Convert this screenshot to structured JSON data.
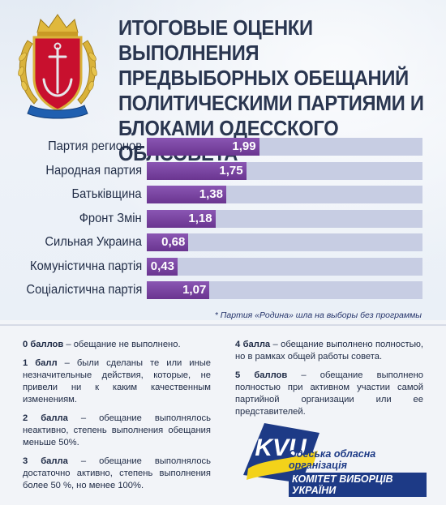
{
  "title": {
    "lines": [
      "ИТОГОВЫЕ ОЦЕНКИ ВЫПОЛНЕНИЯ",
      "ПРЕДВЫБОРНЫХ ОБЕЩАНИЙ",
      "ПОЛИТИЧЕСКИМИ ПАРТИЯМИ И",
      "БЛОКАМИ ОДЕССКОГО ОБЛСОВЕТА"
    ]
  },
  "colors": {
    "bar": "#7a45a2",
    "track": "#c7cde3",
    "title": "#2a3650",
    "org_blue": "#1d3a86",
    "org_yellow": "#f3d21a"
  },
  "icons": {
    "emblem": "odesa-oblast-coat-of-arms-icon",
    "logo": "kvu-logo-icon"
  },
  "chart_data": {
    "type": "bar",
    "orientation": "horizontal",
    "categories": [
      "Партия регионов",
      "Народная партия",
      "Батьківщина",
      "Фронт Змін",
      "Сильная Украина",
      "Комуністична партія",
      "Соціалістична партія"
    ],
    "values": [
      1.99,
      1.75,
      1.38,
      1.18,
      0.68,
      0.43,
      1.07
    ],
    "value_labels": [
      "1,99",
      "1,75",
      "1,38",
      "1,18",
      "0,68",
      "0,43",
      "1,07"
    ],
    "xlim": [
      0,
      5
    ],
    "grid": false,
    "legend": "none"
  },
  "footnote": "* Партия «Родина» шла на выборы без программы",
  "legend": {
    "left": [
      {
        "term": "0 баллов",
        "text": " – обещание не выполнено."
      },
      {
        "term": "1 балл",
        "text": " – были сделаны те или иные незначительные действия, которые, не привели ни к каким качественным изменениям."
      },
      {
        "term": "2 балла",
        "text": " – обещание выполнялось неактивно, степень выполнения обещания меньше 50%."
      },
      {
        "term": "3 балла",
        "text": " – обещание выполнялось достаточно активно, степень выполнения более 50 %, но менее 100%."
      }
    ],
    "right": [
      {
        "term": "4 балла",
        "text": " – обещание выполнено полностью, но в рамках общей работы совета."
      },
      {
        "term": "5 баллов",
        "text": " – обещание выполнено полностью при активном участии самой партийной организации или ее представителей."
      }
    ]
  },
  "organization": {
    "logo_text": "KVU",
    "line1": "Одеська обласна організація",
    "line2": "КОМІТЕТ ВИБОРЦІВ УКРАЇНИ"
  }
}
